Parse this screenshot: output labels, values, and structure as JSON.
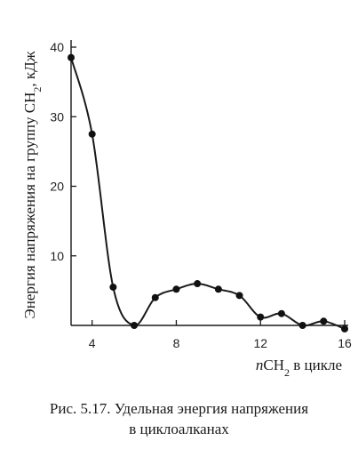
{
  "caption": {
    "line1": "Рис. 5.17. Удельная энергия напряжения",
    "line2": "в циклоалканах"
  },
  "chart_data": {
    "type": "line",
    "title": "",
    "xlabel_italic": "n",
    "xlabel_rest": "CH",
    "xlabel_sub": "2",
    "xlabel_tail": " в цикле",
    "ylabel_main": "Энергия напряжения на группу CH",
    "ylabel_sub": "2",
    "ylabel_tail": ", кДж",
    "xlim": [
      3,
      16
    ],
    "ylim": [
      0,
      40
    ],
    "x_ticks": [
      4,
      8,
      12,
      16
    ],
    "x_tick_labels": [
      "4",
      "8",
      "12",
      "16"
    ],
    "y_ticks": [
      10,
      20,
      30,
      40
    ],
    "y_tick_labels": [
      "10",
      "20",
      "30",
      "40"
    ],
    "grid": false,
    "series": [
      {
        "x": [
          3,
          4,
          5,
          6,
          7,
          8,
          9,
          10,
          11,
          12,
          13,
          14,
          15,
          16
        ],
        "y": [
          38.5,
          27.5,
          5.5,
          0,
          4,
          5.2,
          6,
          5.2,
          4.3,
          1.2,
          1.7,
          0,
          0.6,
          -0.5
        ],
        "smooth": true
      }
    ]
  }
}
